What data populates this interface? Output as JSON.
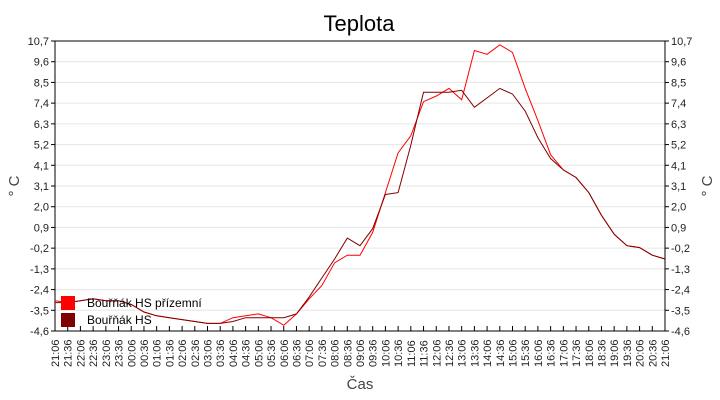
{
  "chart_data": {
    "type": "line",
    "title": "Teplota",
    "xlabel": "Čas",
    "ylabel": "° C",
    "ylabel_right": "° C",
    "ylim": [
      -4.6,
      10.7
    ],
    "yticks": [
      "10,7",
      "9,6",
      "8,5",
      "7,4",
      "6,3",
      "5,2",
      "4,1",
      "3,1",
      "2,0",
      "0,9",
      "-0,2",
      "-1,3",
      "-2,4",
      "-3,5",
      "-4,6"
    ],
    "grid": true,
    "legend_position": "bottom-left",
    "x": [
      "21:06",
      "21:36",
      "22:06",
      "22:36",
      "23:06",
      "23:36",
      "00:06",
      "00:36",
      "01:06",
      "01:36",
      "02:06",
      "02:36",
      "03:06",
      "03:36",
      "04:06",
      "04:36",
      "05:06",
      "05:36",
      "06:06",
      "06:36",
      "07:06",
      "07:36",
      "08:06",
      "08:36",
      "09:06",
      "09:36",
      "10:06",
      "10:36",
      "11:06",
      "11:36",
      "12:06",
      "12:36",
      "13:06",
      "13:36",
      "14:06",
      "14:36",
      "15:06",
      "15:36",
      "16:06",
      "16:36",
      "17:06",
      "17:36",
      "18:06",
      "18:36",
      "19:06",
      "19:36",
      "20:06",
      "20:36",
      "21:06"
    ],
    "series": [
      {
        "name": "Bouřňák HS přízemní",
        "color": "#ff0000",
        "values": [
          -3.0,
          -3.1,
          -3.0,
          -2.9,
          -3.0,
          -3.0,
          -3.2,
          -3.6,
          -3.8,
          -3.9,
          -4.0,
          -4.1,
          -4.2,
          -4.2,
          -3.9,
          -3.8,
          -3.7,
          -3.9,
          -4.3,
          -3.7,
          -2.9,
          -2.2,
          -1.0,
          -0.6,
          -0.6,
          0.6,
          2.7,
          4.8,
          5.7,
          7.5,
          7.8,
          8.2,
          7.6,
          10.2,
          10.0,
          10.5,
          10.1,
          8.2,
          6.5,
          4.7,
          3.9,
          3.5,
          2.7,
          1.5,
          0.5,
          -0.1,
          -0.2,
          -0.6,
          -0.8
        ]
      },
      {
        "name": "Bouřňák HS",
        "color": "#800000",
        "values": [
          -3.1,
          -3.1,
          -3.0,
          -2.9,
          -3.0,
          -3.0,
          -3.2,
          -3.6,
          -3.8,
          -3.9,
          -4.0,
          -4.1,
          -4.2,
          -4.2,
          -4.1,
          -3.9,
          -3.9,
          -3.9,
          -3.9,
          -3.7,
          -2.8,
          -1.8,
          -0.8,
          0.3,
          -0.1,
          0.8,
          2.6,
          2.7,
          5.2,
          8.0,
          8.0,
          8.0,
          8.1,
          7.2,
          7.7,
          8.2,
          7.9,
          7.0,
          5.6,
          4.5,
          3.9,
          3.5,
          2.7,
          1.5,
          0.5,
          -0.1,
          -0.2,
          -0.6,
          -0.8
        ]
      }
    ]
  }
}
